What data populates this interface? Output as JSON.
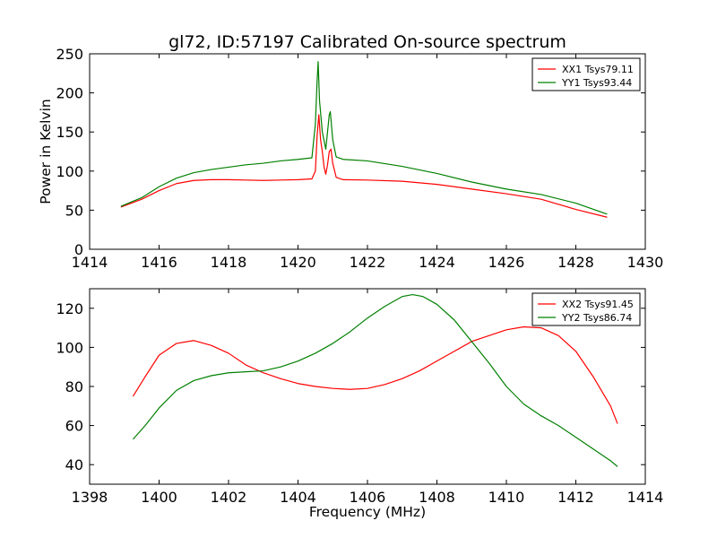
{
  "figure_title": "gl72, ID:57197 Calibrated On-source spectrum",
  "colors": {
    "red": "#ff0000",
    "green": "#008000",
    "frame": "#000000"
  },
  "chart_data": [
    {
      "type": "line",
      "title": "gl72, ID:57197 Calibrated On-source spectrum",
      "xlabel": "",
      "ylabel": "Power in Kelvin",
      "xlim": [
        1414,
        1430
      ],
      "ylim": [
        0,
        250
      ],
      "xticks": [
        1414,
        1416,
        1418,
        1420,
        1422,
        1424,
        1426,
        1428,
        1430
      ],
      "yticks": [
        0,
        50,
        100,
        150,
        200,
        250
      ],
      "legend": "top-right",
      "grid": false,
      "series": [
        {
          "name": "XX1 Tsys79.11",
          "color": "#ff0000",
          "points": [
            [
              1414.9,
              54
            ],
            [
              1415.5,
              64
            ],
            [
              1416.0,
              75
            ],
            [
              1416.5,
              84
            ],
            [
              1417.0,
              88
            ],
            [
              1417.5,
              89
            ],
            [
              1418.0,
              89
            ],
            [
              1418.5,
              88.5
            ],
            [
              1419.0,
              88
            ],
            [
              1419.5,
              88.5
            ],
            [
              1420.0,
              89
            ],
            [
              1420.4,
              90
            ],
            [
              1420.5,
              100
            ],
            [
              1420.55,
              145
            ],
            [
              1420.6,
              172
            ],
            [
              1420.65,
              140
            ],
            [
              1420.7,
              125
            ],
            [
              1420.75,
              105
            ],
            [
              1420.8,
              96
            ],
            [
              1420.85,
              108
            ],
            [
              1420.9,
              125
            ],
            [
              1420.95,
              128
            ],
            [
              1421.0,
              110
            ],
            [
              1421.1,
              92
            ],
            [
              1421.3,
              89
            ],
            [
              1422.0,
              88.5
            ],
            [
              1423.0,
              87
            ],
            [
              1424.0,
              83
            ],
            [
              1425.0,
              77
            ],
            [
              1426.0,
              71
            ],
            [
              1427.0,
              64
            ],
            [
              1428.0,
              51
            ],
            [
              1428.9,
              41
            ]
          ]
        },
        {
          "name": "YY1 Tsys93.44",
          "color": "#008000",
          "points": [
            [
              1414.9,
              55
            ],
            [
              1415.5,
              66
            ],
            [
              1416.0,
              80
            ],
            [
              1416.5,
              91
            ],
            [
              1417.0,
              98
            ],
            [
              1417.5,
              102
            ],
            [
              1418.0,
              105
            ],
            [
              1418.5,
              108
            ],
            [
              1419.0,
              110
            ],
            [
              1419.5,
              113
            ],
            [
              1420.0,
              115
            ],
            [
              1420.4,
              117
            ],
            [
              1420.5,
              160
            ],
            [
              1420.55,
              215
            ],
            [
              1420.58,
              240
            ],
            [
              1420.62,
              190
            ],
            [
              1420.7,
              150
            ],
            [
              1420.8,
              128
            ],
            [
              1420.85,
              150
            ],
            [
              1420.9,
              172
            ],
            [
              1420.93,
              176
            ],
            [
              1421.0,
              140
            ],
            [
              1421.1,
              118
            ],
            [
              1421.3,
              115
            ],
            [
              1422.0,
              113
            ],
            [
              1423.0,
              106
            ],
            [
              1424.0,
              97
            ],
            [
              1425.0,
              86
            ],
            [
              1426.0,
              77
            ],
            [
              1427.0,
              70
            ],
            [
              1428.0,
              59
            ],
            [
              1428.9,
              45
            ]
          ]
        }
      ]
    },
    {
      "type": "line",
      "title": "",
      "xlabel": "Frequency (MHz)",
      "ylabel": "",
      "xlim": [
        1398,
        1414
      ],
      "ylim": [
        30,
        130
      ],
      "xticks": [
        1398,
        1400,
        1402,
        1404,
        1406,
        1408,
        1410,
        1412,
        1414
      ],
      "yticks": [
        40,
        60,
        80,
        100,
        120
      ],
      "legend": "top-right",
      "grid": false,
      "series": [
        {
          "name": "XX2 Tsys91.45",
          "color": "#ff0000",
          "points": [
            [
              1399.25,
              75
            ],
            [
              1399.6,
              85
            ],
            [
              1400.0,
              96
            ],
            [
              1400.5,
              102
            ],
            [
              1401.0,
              103.5
            ],
            [
              1401.5,
              101
            ],
            [
              1402.0,
              97
            ],
            [
              1402.5,
              91
            ],
            [
              1403.0,
              87
            ],
            [
              1403.5,
              84
            ],
            [
              1404.0,
              81.5
            ],
            [
              1404.5,
              80
            ],
            [
              1405.0,
              79
            ],
            [
              1405.5,
              78.5
            ],
            [
              1406.0,
              79
            ],
            [
              1406.5,
              81
            ],
            [
              1407.0,
              84
            ],
            [
              1407.5,
              88
            ],
            [
              1408.0,
              93
            ],
            [
              1408.5,
              98
            ],
            [
              1409.0,
              103
            ],
            [
              1409.5,
              106
            ],
            [
              1410.0,
              109
            ],
            [
              1410.5,
              110.5
            ],
            [
              1411.0,
              110
            ],
            [
              1411.5,
              106
            ],
            [
              1412.0,
              98
            ],
            [
              1412.5,
              85
            ],
            [
              1413.0,
              70
            ],
            [
              1413.2,
              61
            ]
          ]
        },
        {
          "name": "YY2 Tsys86.74",
          "color": "#008000",
          "points": [
            [
              1399.25,
              53
            ],
            [
              1399.6,
              60
            ],
            [
              1400.0,
              69
            ],
            [
              1400.5,
              78
            ],
            [
              1401.0,
              83
            ],
            [
              1401.5,
              85.5
            ],
            [
              1402.0,
              87
            ],
            [
              1402.5,
              87.5
            ],
            [
              1403.0,
              88
            ],
            [
              1403.5,
              90
            ],
            [
              1404.0,
              93
            ],
            [
              1404.5,
              97
            ],
            [
              1405.0,
              102
            ],
            [
              1405.5,
              108
            ],
            [
              1406.0,
              115
            ],
            [
              1406.5,
              121
            ],
            [
              1407.0,
              126
            ],
            [
              1407.3,
              127
            ],
            [
              1407.6,
              126
            ],
            [
              1408.0,
              122
            ],
            [
              1408.5,
              114
            ],
            [
              1409.0,
              103
            ],
            [
              1409.5,
              92
            ],
            [
              1410.0,
              80
            ],
            [
              1410.5,
              71
            ],
            [
              1411.0,
              65
            ],
            [
              1411.5,
              60
            ],
            [
              1412.0,
              54
            ],
            [
              1412.5,
              48
            ],
            [
              1413.0,
              42
            ],
            [
              1413.2,
              39
            ]
          ]
        }
      ]
    }
  ]
}
